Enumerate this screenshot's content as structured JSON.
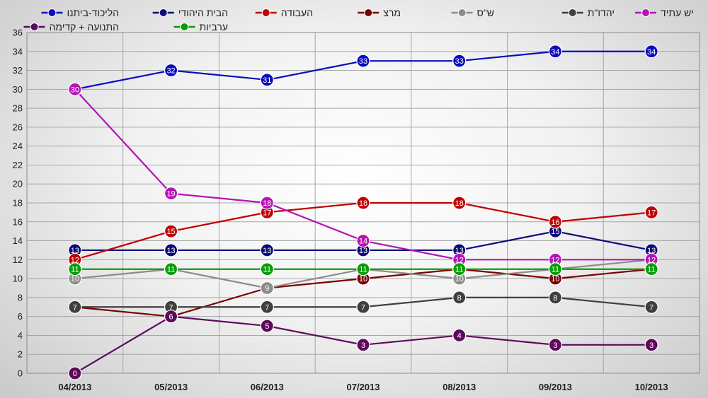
{
  "chart_data": {
    "type": "line",
    "title": "",
    "xlabel": "",
    "ylabel": "",
    "categories": [
      "04/2013",
      "05/2013",
      "06/2013",
      "07/2013",
      "08/2013",
      "09/2013",
      "10/2013"
    ],
    "ylim": [
      0,
      36
    ],
    "yticks": [
      0,
      2,
      4,
      6,
      8,
      10,
      12,
      14,
      16,
      18,
      20,
      22,
      24,
      26,
      28,
      30,
      32,
      34,
      36
    ],
    "grid": true,
    "legend_position": "top",
    "series": [
      {
        "name": "הליכוד-ביתנו",
        "color": "#0b0bbf",
        "values": [
          30,
          32,
          31,
          33,
          33,
          34,
          34
        ]
      },
      {
        "name": "הבית היהודי",
        "color": "#0a0a78",
        "values": [
          13,
          13,
          13,
          13,
          13,
          15,
          13
        ]
      },
      {
        "name": "העבודה",
        "color": "#c00000",
        "values": [
          12,
          15,
          17,
          18,
          18,
          16,
          17
        ]
      },
      {
        "name": "מרצ",
        "color": "#7a0000",
        "values": [
          7,
          6,
          9,
          10,
          11,
          10,
          11
        ]
      },
      {
        "name": "ש\"ס",
        "color": "#8c8c8c",
        "values": [
          10,
          11,
          9,
          11,
          10,
          11,
          12
        ]
      },
      {
        "name": "יהדו\"ת",
        "color": "#3f3f3f",
        "values": [
          7,
          7,
          7,
          7,
          8,
          8,
          7
        ]
      },
      {
        "name": "יש עתיד",
        "color": "#b414b4",
        "values": [
          30,
          19,
          18,
          14,
          12,
          12,
          12
        ]
      },
      {
        "name": "התנועה + קדימה",
        "color": "#5c0a5c",
        "values": [
          0,
          6,
          5,
          3,
          4,
          3,
          3
        ]
      },
      {
        "name": "ערביות",
        "color": "#0a9c0a",
        "values": [
          11,
          11,
          11,
          11,
          11,
          11,
          11
        ]
      }
    ]
  }
}
